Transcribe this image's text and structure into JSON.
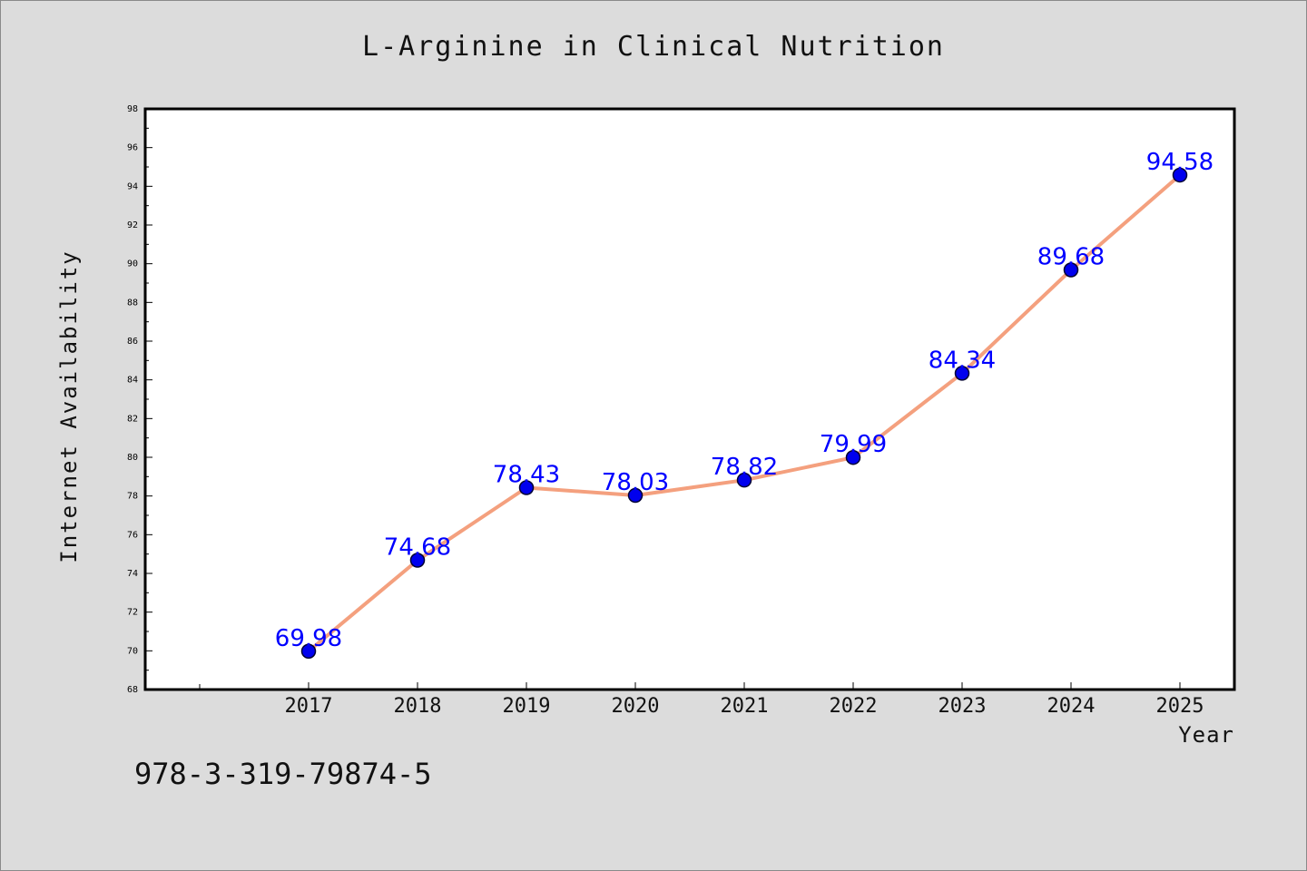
{
  "chart_data": {
    "type": "line",
    "title": "L-Arginine in Clinical Nutrition",
    "xlabel": "Year",
    "ylabel": "Internet Availability",
    "categories": [
      "2017",
      "2018",
      "2019",
      "2020",
      "2021",
      "2022",
      "2023",
      "2024",
      "2025"
    ],
    "series": [
      {
        "values": [
          69.98,
          74.68,
          78.43,
          78.03,
          78.82,
          79.99,
          84.34,
          89.68,
          94.58
        ]
      }
    ],
    "data_labels": [
      "69.98",
      "74.68",
      "78.43",
      "78.03",
      "78.82",
      "79.99",
      "84.34",
      "89.68",
      "94.58"
    ],
    "ylim": [
      68,
      98
    ],
    "y_ticks": [
      68,
      70,
      72,
      74,
      76,
      78,
      80,
      82,
      84,
      86,
      88,
      90,
      92,
      94,
      96,
      98
    ],
    "grid": false,
    "legend": "none",
    "colors": {
      "line": "#f4a07e",
      "marker_fill": "#0000ee",
      "marker_stroke": "#000033",
      "data_label": "#0000ff",
      "plot_background": "#ffffff",
      "figure_background": "#dcdcdc"
    }
  },
  "footer": {
    "code": "978-3-319-79874-5"
  }
}
